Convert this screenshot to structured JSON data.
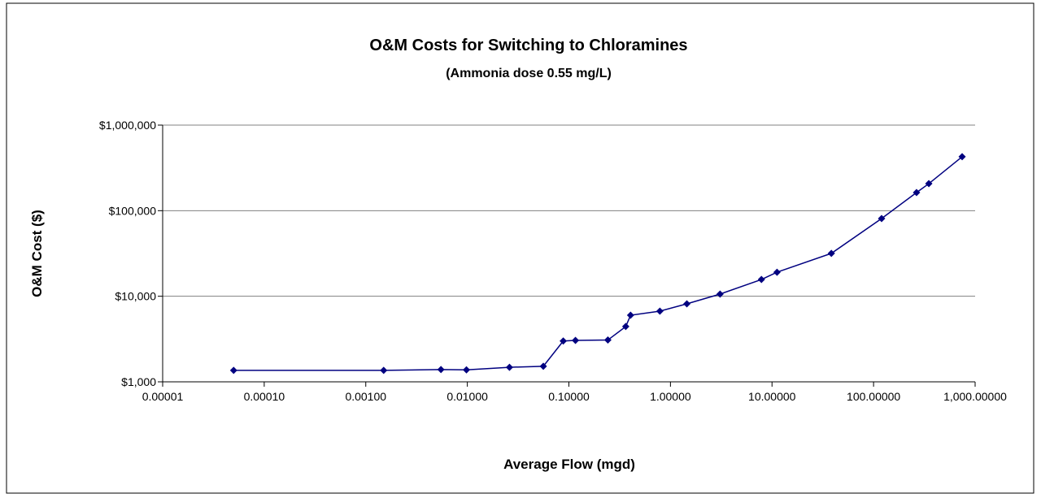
{
  "chart_data": {
    "type": "line",
    "title": "O&M Costs for Switching to Chloramines",
    "subtitle": "(Ammonia dose 0.55 mg/L)",
    "x_label": "Average Flow (mgd)",
    "y_label": "O&M Cost ($)",
    "x_log": true,
    "y_log": true,
    "grid": true,
    "series": [
      {
        "name": "O&M Cost",
        "color": "#000080",
        "x": [
          5e-05,
          0.0015,
          0.0055,
          0.0098,
          0.026,
          0.056,
          0.088,
          0.116,
          0.242,
          0.363,
          0.405,
          0.787,
          1.45,
          3.08,
          7.87,
          11.2,
          38.4,
          120,
          265,
          350,
          745
        ],
        "values": [
          1360,
          1360,
          1390,
          1380,
          1480,
          1520,
          3000,
          3050,
          3080,
          4430,
          6000,
          6700,
          8160,
          10600,
          15700,
          19100,
          31700,
          81000,
          163000,
          207000,
          427000
        ]
      }
    ],
    "xlim": [
      1e-05,
      1000
    ],
    "xticks": [
      {
        "value": 1e-05,
        "label": "0.00001"
      },
      {
        "value": 0.0001,
        "label": "0.00010"
      },
      {
        "value": 0.001,
        "label": "0.00100"
      },
      {
        "value": 0.01,
        "label": "0.01000"
      },
      {
        "value": 0.1,
        "label": "0.10000"
      },
      {
        "value": 1,
        "label": "1.00000"
      },
      {
        "value": 10,
        "label": "10.00000"
      },
      {
        "value": 100,
        "label": "100.00000"
      },
      {
        "value": 1000,
        "label": "1,000.00000"
      }
    ],
    "ylim": [
      1000,
      1000000
    ],
    "yticks": [
      {
        "value": 1000,
        "label": "$1,000"
      },
      {
        "value": 10000,
        "label": "$10,000"
      },
      {
        "value": 100000,
        "label": "$100,000"
      },
      {
        "value": 1000000,
        "label": "$1,000,000"
      }
    ]
  }
}
